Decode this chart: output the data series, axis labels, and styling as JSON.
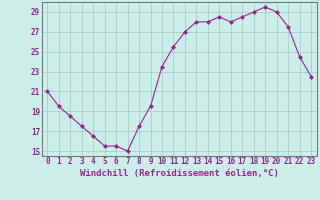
{
  "x": [
    0,
    1,
    2,
    3,
    4,
    5,
    6,
    7,
    8,
    9,
    10,
    11,
    12,
    13,
    14,
    15,
    16,
    17,
    18,
    19,
    20,
    21,
    22,
    23
  ],
  "y": [
    21,
    19.5,
    18.5,
    17.5,
    16.5,
    15.5,
    15.5,
    15,
    17.5,
    19.5,
    23.5,
    25.5,
    27,
    28,
    28,
    28.5,
    28,
    28.5,
    29,
    29.5,
    29,
    27.5,
    24.5,
    22.5
  ],
  "line_color": "#992299",
  "marker": "D",
  "marker_size": 2,
  "background_color": "#cceee8",
  "grid_color": "#aacccc",
  "xlabel": "Windchill (Refroidissement éolien,°C)",
  "xlabel_fontsize": 6.5,
  "tick_fontsize": 5.5,
  "ylim": [
    14.5,
    30
  ],
  "yticks": [
    15,
    17,
    19,
    21,
    23,
    25,
    27,
    29
  ],
  "xticks": [
    0,
    1,
    2,
    3,
    4,
    5,
    6,
    7,
    8,
    9,
    10,
    11,
    12,
    13,
    14,
    15,
    16,
    17,
    18,
    19,
    20,
    21,
    22,
    23
  ],
  "spine_color": "#777777"
}
